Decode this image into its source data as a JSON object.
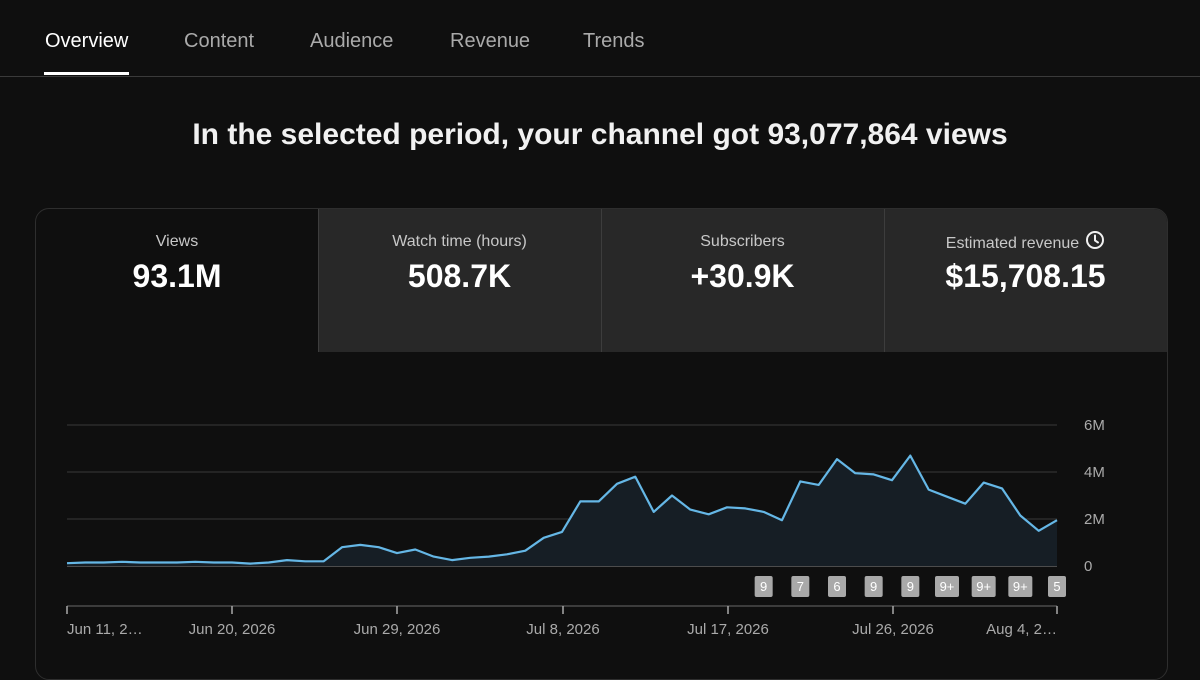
{
  "tabs": [
    {
      "label": "Overview",
      "active": true
    },
    {
      "label": "Content",
      "active": false
    },
    {
      "label": "Audience",
      "active": false
    },
    {
      "label": "Revenue",
      "active": false
    },
    {
      "label": "Trends",
      "active": false
    }
  ],
  "headline": "In the selected period, your channel got 93,077,864 views",
  "metrics": [
    {
      "label": "Views",
      "value": "93.1M"
    },
    {
      "label": "Watch time (hours)",
      "value": "508.7K"
    },
    {
      "label": "Subscribers",
      "value": "+30.9K"
    },
    {
      "label": "Estimated revenue",
      "value": "$15,708.15",
      "icon": "clock-icon"
    }
  ],
  "colors": {
    "background": "#0f0f0f",
    "line": "#65b7e6",
    "area": "#161e25",
    "badge": "#a9a9a9"
  },
  "chart_data": {
    "type": "area",
    "series": [
      {
        "values": [
          0.12,
          0.15,
          0.15,
          0.18,
          0.15,
          0.15,
          0.15,
          0.18,
          0.15,
          0.15,
          0.1,
          0.15,
          0.25,
          0.2,
          0.2,
          0.8,
          0.9,
          0.8,
          0.55,
          0.7,
          0.4,
          0.25,
          0.35,
          0.4,
          0.5,
          0.65,
          1.2,
          1.45,
          2.75,
          2.75,
          3.5,
          3.8,
          2.3,
          3.0,
          2.4,
          2.2,
          2.5,
          2.45,
          2.3,
          1.95,
          3.6,
          3.45,
          4.55,
          3.95,
          3.9,
          3.65,
          4.7,
          3.25,
          2.95,
          2.65,
          3.55,
          3.3,
          2.15,
          1.5,
          1.95
        ]
      }
    ],
    "x_ticks": [
      "Jun 11, 2…",
      "Jun 20, 2026",
      "Jun 29, 2026",
      "Jul 8, 2026",
      "Jul 17, 2026",
      "Jul 26, 2026",
      "Aug 4, 2…"
    ],
    "y_ticks": [
      "6M",
      "4M",
      "2M",
      "0"
    ],
    "ylim": [
      0,
      6
    ],
    "annotations": [
      {
        "x_index": 38,
        "label": "9"
      },
      {
        "x_index": 40,
        "label": "7"
      },
      {
        "x_index": 42,
        "label": "6"
      },
      {
        "x_index": 44,
        "label": "9"
      },
      {
        "x_index": 46,
        "label": "9"
      },
      {
        "x_index": 48,
        "label": "9+"
      },
      {
        "x_index": 50,
        "label": "9+"
      },
      {
        "x_index": 52,
        "label": "9+"
      },
      {
        "x_index": 54,
        "label": "5"
      }
    ]
  }
}
